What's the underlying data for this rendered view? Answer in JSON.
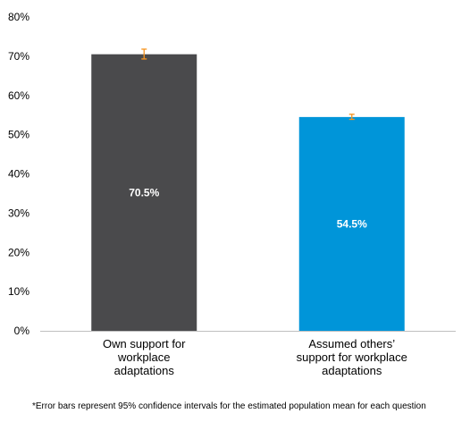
{
  "chart_data": {
    "type": "bar",
    "categories": [
      "Own support for workplace adaptations",
      "Assumed others’ support for workplace adaptations"
    ],
    "category_lines": [
      [
        "Own support for",
        "workplace",
        "adaptations"
      ],
      [
        "Assumed others’",
        "support for workplace",
        "adaptations"
      ]
    ],
    "values": [
      70.5,
      54.5
    ],
    "data_labels": [
      "70.5%",
      "54.5%"
    ],
    "error_bars": [
      {
        "low": 69.3,
        "high": 71.8
      },
      {
        "low": 53.9,
        "high": 55.2
      }
    ],
    "colors": [
      "#4a4a4c",
      "#0095d9"
    ],
    "error_bar_color": "#f7941d",
    "ylim": [
      0,
      80
    ],
    "yticks": [
      0,
      10,
      20,
      30,
      40,
      50,
      60,
      70,
      80
    ],
    "ytick_labels": [
      "0%",
      "10%",
      "20%",
      "30%",
      "40%",
      "50%",
      "60%",
      "70%",
      "80%"
    ],
    "grid": false,
    "title": "",
    "xlabel": "",
    "ylabel": ""
  },
  "footnote": "*Error bars represent 95% confidence intervals for the estimated population mean for each question"
}
